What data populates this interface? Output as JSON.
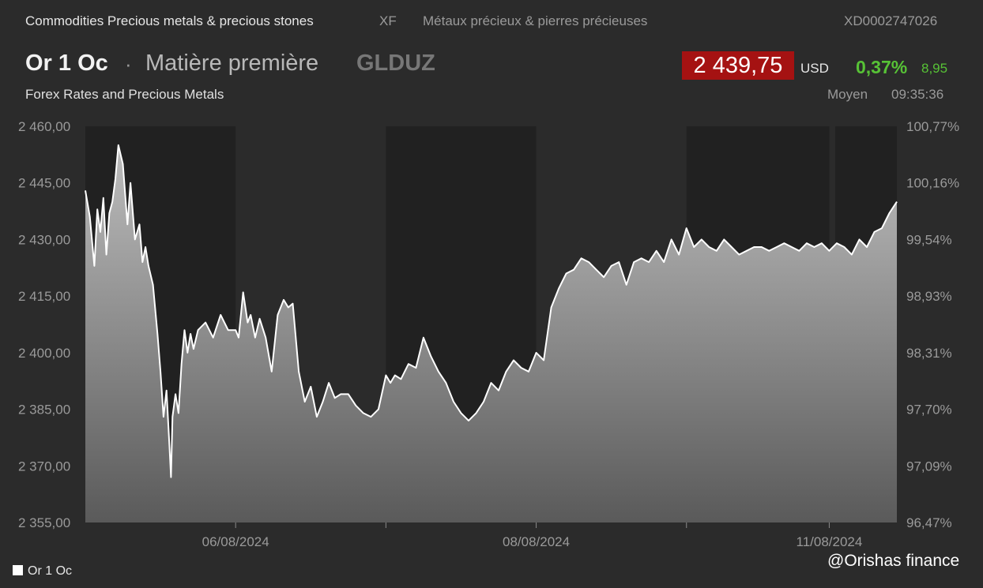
{
  "header": {
    "category": "Commodities Precious metals & precious stones",
    "exchange": "XF",
    "category_fr": "Métaux précieux & pierres précieuses",
    "isin": "XD0002747026",
    "name": "Or 1 Oc",
    "separator": "·",
    "type": "Matière première",
    "ticker": "GLDUZ",
    "price": "2 439,75",
    "currency": "USD",
    "change_pct": "0,37%",
    "change_abs": "8,95",
    "subtitle": "Forex Rates and Precious Metals",
    "quote_type": "Moyen",
    "time": "09:35:36"
  },
  "legend": {
    "label": "Or 1 Oc"
  },
  "watermark": "@Orishas finance",
  "colors": {
    "background": "#2b2b2b",
    "band": "#212121",
    "price_box": "#a51212",
    "positive": "#57c236",
    "line": "#ffffff"
  },
  "chart_data": {
    "type": "area",
    "title": "",
    "ylim": [
      2355,
      2460
    ],
    "ylim_right": [
      96.47,
      100.77
    ],
    "y_ticks": [
      "2 460,00",
      "2 445,00",
      "2 430,00",
      "2 415,00",
      "2 400,00",
      "2 385,00",
      "2 370,00",
      "2 355,00"
    ],
    "y_ticks_right": [
      "100,77%",
      "100,16%",
      "99,54%",
      "98,93%",
      "98,31%",
      "97,70%",
      "97,09%",
      "96,47%"
    ],
    "x_range": [
      0,
      5.4
    ],
    "x_tick_labels": [
      {
        "pos": 1.0,
        "label": "06/08/2024"
      },
      {
        "pos": 3.0,
        "label": "08/08/2024"
      },
      {
        "pos": 4.95,
        "label": "11/08/2024"
      }
    ],
    "x_minor_ticks": [
      1.0,
      2.0,
      3.0,
      4.0,
      4.95
    ],
    "dark_bands": [
      [
        0,
        1.0
      ],
      [
        2.0,
        3.0
      ],
      [
        4.0,
        4.95
      ],
      [
        4.99,
        5.4
      ]
    ],
    "series": [
      {
        "x": [
          0.0,
          0.03,
          0.06,
          0.08,
          0.1,
          0.12,
          0.14,
          0.16,
          0.18,
          0.2,
          0.22,
          0.25,
          0.28,
          0.3,
          0.33,
          0.36,
          0.38,
          0.4,
          0.42,
          0.45,
          0.48,
          0.5,
          0.52,
          0.54,
          0.56,
          0.57,
          0.58,
          0.6,
          0.62,
          0.64,
          0.66,
          0.68,
          0.7,
          0.72,
          0.75,
          0.8,
          0.85,
          0.9,
          0.95,
          1.0,
          1.02,
          1.05,
          1.08,
          1.1,
          1.13,
          1.16,
          1.2,
          1.24,
          1.28,
          1.3,
          1.32,
          1.35,
          1.38,
          1.42,
          1.46,
          1.5,
          1.54,
          1.58,
          1.62,
          1.66,
          1.7,
          1.75,
          1.8,
          1.85,
          1.9,
          1.95,
          2.0,
          2.03,
          2.06,
          2.1,
          2.15,
          2.2,
          2.25,
          2.3,
          2.35,
          2.4,
          2.45,
          2.5,
          2.55,
          2.6,
          2.65,
          2.7,
          2.75,
          2.8,
          2.85,
          2.9,
          2.95,
          3.0,
          3.05,
          3.1,
          3.15,
          3.2,
          3.25,
          3.3,
          3.35,
          3.4,
          3.45,
          3.5,
          3.55,
          3.6,
          3.65,
          3.7,
          3.75,
          3.8,
          3.85,
          3.9,
          3.95,
          4.0,
          4.05,
          4.1,
          4.15,
          4.2,
          4.25,
          4.3,
          4.35,
          4.4,
          4.45,
          4.5,
          4.55,
          4.6,
          4.65,
          4.7,
          4.75,
          4.8,
          4.85,
          4.9,
          4.95,
          5.0,
          5.05,
          5.1,
          5.15,
          5.2,
          5.25,
          5.3,
          5.35,
          5.4
        ],
        "y": [
          2443,
          2436,
          2423,
          2438,
          2432,
          2441,
          2426,
          2437,
          2440,
          2446,
          2455,
          2450,
          2434,
          2445,
          2430,
          2434,
          2424,
          2428,
          2423,
          2418,
          2405,
          2395,
          2383,
          2390,
          2375,
          2367,
          2383,
          2389,
          2384,
          2397,
          2406,
          2400,
          2405,
          2401,
          2406,
          2408,
          2404,
          2410,
          2406,
          2406,
          2404,
          2416,
          2408,
          2410,
          2404,
          2409,
          2404,
          2395,
          2410,
          2412,
          2414,
          2412,
          2413,
          2395,
          2387,
          2391,
          2383,
          2387,
          2392,
          2388,
          2389,
          2389,
          2386,
          2384,
          2383,
          2385,
          2394,
          2392,
          2394,
          2393,
          2397,
          2396,
          2404,
          2399,
          2395,
          2392,
          2387,
          2384,
          2382,
          2384,
          2387,
          2392,
          2390,
          2395,
          2398,
          2396,
          2395,
          2400,
          2398,
          2412,
          2417,
          2421,
          2422,
          2425,
          2424,
          2422,
          2420,
          2423,
          2424,
          2418,
          2424,
          2425,
          2424,
          2427,
          2424,
          2430,
          2426,
          2433,
          2428,
          2430,
          2428,
          2427,
          2430,
          2428,
          2426,
          2427,
          2428,
          2428,
          2427,
          2428,
          2429,
          2428,
          2427,
          2429,
          2428,
          2429,
          2427,
          2429,
          2428,
          2426,
          2430,
          2428,
          2432,
          2433,
          2437,
          2440
        ]
      }
    ]
  }
}
